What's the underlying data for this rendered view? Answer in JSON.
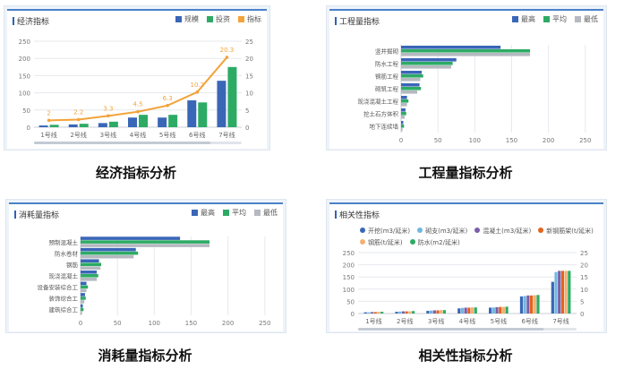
{
  "captions": [
    "经济指标分析",
    "工程量指标分析",
    "消耗量指标分析",
    "相关性指标分析"
  ],
  "colors": {
    "blue": "#3a66b7",
    "green": "#2dab64",
    "gray": "#b5b9c0",
    "orange": "#f2a33a",
    "lightgray": "#c6cbd2"
  },
  "chart_data": [
    {
      "type": "bar",
      "title": "经济指标分析",
      "panel_title": "经济指标",
      "categories": [
        "1号线",
        "2号线",
        "3号线",
        "4号线",
        "5号线",
        "6号线",
        "7号线"
      ],
      "series": [
        {
          "name": "规模",
          "values": [
            5,
            8,
            12,
            28,
            28,
            78,
            135
          ],
          "color": "#3a66b7"
        },
        {
          "name": "投资",
          "values": [
            7,
            10,
            16,
            36,
            36,
            72,
            175
          ],
          "color": "#2dab64"
        },
        {
          "name": "指标",
          "values": [
            2,
            2.2,
            3.3,
            4.5,
            6.3,
            10.2,
            20.3
          ],
          "color": "#f2a33a",
          "axis": "right",
          "render": "line"
        }
      ],
      "line_labels": [
        "2",
        "2.2",
        "3.3",
        "4.5",
        "6.3",
        "10.2",
        "20.3"
      ],
      "ylim": [
        0,
        250
      ],
      "y2lim": [
        0,
        25
      ],
      "yticks": [
        "0",
        "50",
        "100",
        "150",
        "200",
        "250"
      ],
      "y2ticks": [
        "0",
        "5",
        "10",
        "15",
        "20",
        "25"
      ]
    },
    {
      "type": "bar",
      "orientation": "horizontal",
      "title": "工程量指标分析",
      "panel_title": "工程量指标",
      "categories": [
        "竖井掘砌",
        "防水工程",
        "钢筋工程",
        "砌筑工程",
        "现浇混凝土工程",
        "挖土石方体积",
        "地下连续墙"
      ],
      "series": [
        {
          "name": "最高",
          "values": [
            135,
            75,
            28,
            25,
            8,
            6,
            3
          ],
          "color": "#3a66b7"
        },
        {
          "name": "平均",
          "values": [
            175,
            70,
            30,
            27,
            10,
            7,
            4
          ],
          "color": "#2dab64"
        },
        {
          "name": "最低",
          "values": [
            175,
            68,
            26,
            22,
            8,
            5,
            2
          ],
          "color": "#b5b9c0"
        }
      ],
      "xlim": [
        0,
        260
      ],
      "xticks": [
        "0",
        "50",
        "100",
        "150",
        "200",
        "250"
      ]
    },
    {
      "type": "bar",
      "orientation": "horizontal",
      "title": "消耗量指标分析",
      "panel_title": "消耗量指标",
      "categories": [
        "预制混凝土",
        "防水卷材",
        "钢筋",
        "现浇混凝土",
        "设备安装综合工",
        "装饰综合工",
        "建筑综合工"
      ],
      "series": [
        {
          "name": "最高",
          "values": [
            135,
            75,
            25,
            22,
            8,
            6,
            3
          ],
          "color": "#3a66b7"
        },
        {
          "name": "平均",
          "values": [
            175,
            78,
            28,
            24,
            10,
            7,
            4
          ],
          "color": "#2dab64"
        },
        {
          "name": "最低",
          "values": [
            175,
            72,
            27,
            22,
            8,
            5,
            2
          ],
          "color": "#b5b9c0"
        }
      ],
      "xlim": [
        0,
        260
      ],
      "xticks": [
        "0",
        "50",
        "100",
        "150",
        "200",
        "250"
      ]
    },
    {
      "type": "bar",
      "title": "相关性指标分析",
      "panel_title": "相关性指标",
      "categories": [
        "1号线",
        "2号线",
        "3号线",
        "4号线",
        "5号线",
        "6号线",
        "7号线"
      ],
      "series": [
        {
          "name": "开挖(m3/延米)",
          "values": [
            5,
            7,
            11,
            21,
            24,
            70,
            130
          ],
          "color": "#3a66b7"
        },
        {
          "name": "砌支(m3/延米)",
          "values": [
            5,
            8,
            12,
            23,
            25,
            72,
            170
          ],
          "color": "#6fb8e0"
        },
        {
          "name": "混凝土(m3/延米)",
          "values": [
            6,
            9,
            13,
            24,
            26,
            74,
            175
          ],
          "color": "#7b5ea8"
        },
        {
          "name": "新钢筋架(t/延米)",
          "values": [
            6,
            9,
            13,
            24,
            27,
            74,
            175
          ],
          "color": "#e3641e"
        },
        {
          "name": "钢筋(t/延米)",
          "values": [
            7,
            9,
            14,
            25,
            27,
            75,
            175
          ],
          "color": "#f2b073"
        },
        {
          "name": "防水(m2/延米)",
          "values": [
            7,
            10,
            14,
            25,
            28,
            76,
            175
          ],
          "color": "#2dab64"
        }
      ],
      "ylim": [
        0,
        250
      ],
      "y2lim": [
        0,
        25
      ],
      "yticks": [
        "0",
        "50",
        "100",
        "150",
        "200",
        "250"
      ],
      "y2ticks": [
        "0",
        "5",
        "10",
        "15",
        "20",
        "25"
      ]
    }
  ]
}
